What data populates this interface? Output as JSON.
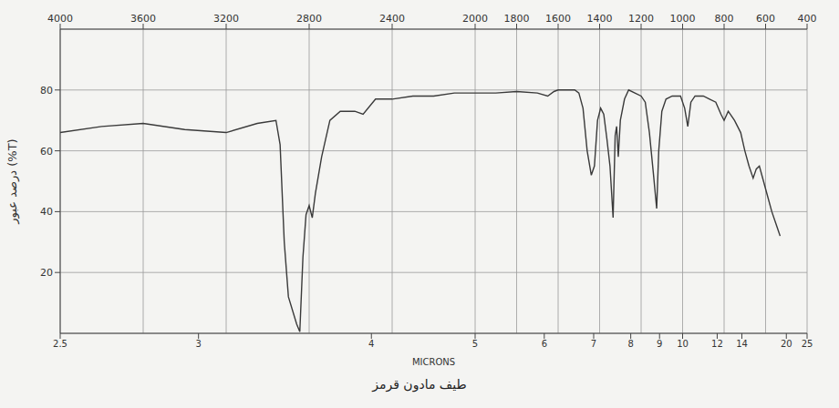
{
  "chart_data": {
    "type": "line",
    "ylabel": "درصد عبور (%T)",
    "x2label": "MICRONS",
    "caption": "طیف مادون قرمز",
    "x": [
      4000,
      3800,
      3600,
      3400,
      3200,
      3050,
      2960,
      2940,
      2920,
      2900,
      2860,
      2845,
      2830,
      2815,
      2800,
      2785,
      2770,
      2740,
      2700,
      2650,
      2580,
      2540,
      2480,
      2400,
      2300,
      2200,
      2100,
      2000,
      1900,
      1800,
      1700,
      1650,
      1620,
      1600,
      1520,
      1500,
      1480,
      1460,
      1440,
      1425,
      1410,
      1395,
      1380,
      1365,
      1350,
      1335,
      1325,
      1318,
      1310,
      1300,
      1280,
      1260,
      1230,
      1200,
      1180,
      1160,
      1140,
      1125,
      1115,
      1100,
      1080,
      1050,
      1010,
      990,
      975,
      960,
      940,
      900,
      870,
      840,
      815,
      800,
      780,
      750,
      720,
      700,
      680,
      660,
      645,
      630,
      610,
      590,
      570,
      550,
      530
    ],
    "values": [
      66,
      68,
      69,
      67,
      66,
      69,
      70,
      62,
      30,
      12,
      3,
      0.5,
      25,
      39,
      42,
      38,
      46,
      58,
      70,
      73,
      73,
      72,
      77,
      77,
      78,
      78,
      79,
      79,
      79,
      79.5,
      79,
      78,
      79.5,
      80,
      80,
      79,
      74,
      60,
      52,
      55,
      70,
      74,
      72,
      64,
      55,
      38,
      65,
      68,
      58,
      70,
      77,
      80,
      79,
      78,
      76,
      66,
      52,
      41,
      60,
      73,
      77,
      78,
      78,
      74,
      68,
      76,
      78,
      78,
      77,
      76,
      72,
      70,
      73,
      70,
      66,
      60,
      55,
      51,
      54,
      55,
      50,
      45,
      40,
      36,
      32
    ],
    "color": "#3a3a3a",
    "xlim": [
      4000,
      400
    ],
    "xticks": [
      4000,
      3600,
      3200,
      2800,
      2400,
      2000,
      1800,
      1600,
      1400,
      1200,
      1000,
      800,
      600,
      400
    ],
    "x2ticks": [
      {
        "value": 4000,
        "label": "2.5"
      },
      {
        "value": 3333.3,
        "label": "3"
      },
      {
        "value": 2500,
        "label": "4"
      },
      {
        "value": 2000,
        "label": "5"
      },
      {
        "value": 1666.7,
        "label": "6"
      },
      {
        "value": 1428.6,
        "label": "7"
      },
      {
        "value": 1250,
        "label": "8"
      },
      {
        "value": 1111.1,
        "label": "9"
      },
      {
        "value": 1000,
        "label": "10"
      },
      {
        "value": 833.3,
        "label": "12"
      },
      {
        "value": 714.3,
        "label": "14"
      },
      {
        "value": 500,
        "label": "20"
      },
      {
        "value": 400,
        "label": "25"
      }
    ],
    "ylim": [
      0,
      100
    ],
    "yticks": [
      20,
      40,
      60,
      80
    ],
    "grid": true
  }
}
